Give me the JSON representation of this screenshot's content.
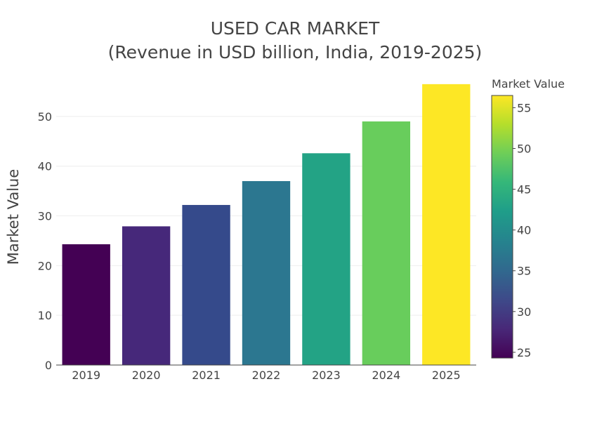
{
  "chart_data": {
    "type": "bar",
    "title": "USED CAR MARKET",
    "subtitle": "(Revenue in USD billion, India, 2019-2025)",
    "xlabel": "",
    "ylabel": "Market Value",
    "categories": [
      "2019",
      "2020",
      "2021",
      "2022",
      "2023",
      "2024",
      "2025"
    ],
    "values": [
      24.3,
      27.9,
      32.2,
      37.0,
      42.6,
      49.0,
      56.5
    ],
    "ylim": [
      0,
      58.6
    ],
    "yticks": [
      0,
      10,
      20,
      30,
      40,
      50
    ],
    "grid": true,
    "colorscale": "Viridis",
    "bar_colors": [
      "#440154",
      "#46287a",
      "#354a8b",
      "#2c7790",
      "#23a385",
      "#68cd5c",
      "#fde725"
    ],
    "colorbar": {
      "title": "Market Value",
      "range": [
        24.3,
        56.5
      ],
      "ticks": [
        25,
        30,
        35,
        40,
        45,
        50,
        55
      ]
    }
  }
}
